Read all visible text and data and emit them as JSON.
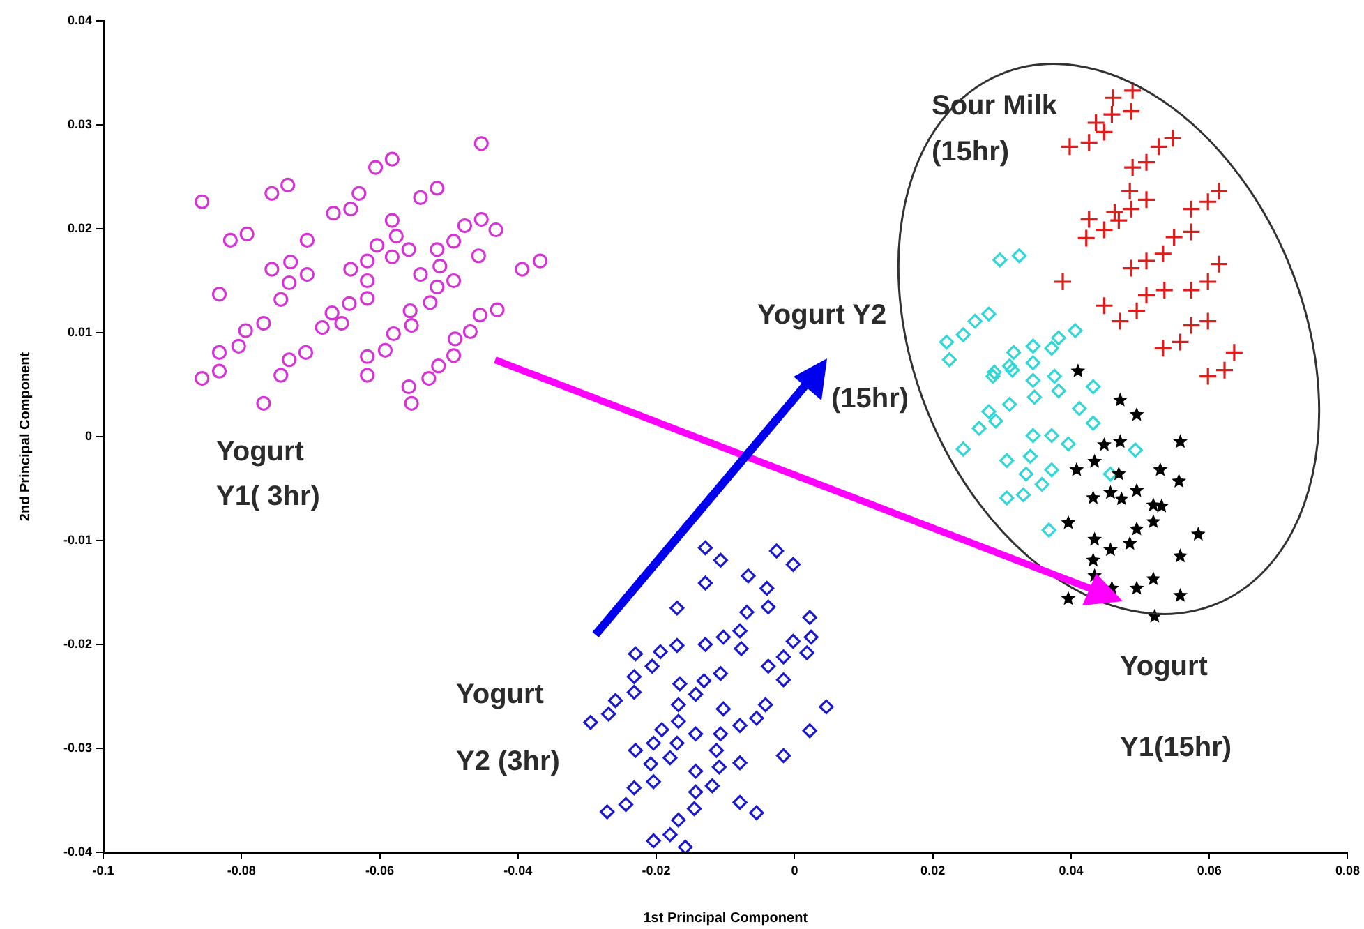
{
  "chart_data": {
    "type": "scatter",
    "xlabel": "1st Principal Component",
    "ylabel": "2nd Principal Component",
    "xlim": [
      -0.1,
      0.08
    ],
    "xticks": [
      -0.1,
      -0.08,
      -0.06,
      -0.04,
      -0.02,
      0,
      0.02,
      0.04,
      0.06,
      0.08
    ],
    "ylim": [
      -0.04,
      0.04
    ],
    "yticks": [
      -0.04,
      -0.03,
      -0.02,
      -0.01,
      0,
      0.01,
      0.02,
      0.03,
      0.04
    ],
    "grid": false,
    "legend": false,
    "series": [
      {
        "color": "#d633d6",
        "marker": "circle",
        "x": [
          -0.0453,
          -0.0582,
          -0.0606,
          -0.0733,
          -0.0756,
          -0.0857,
          -0.063,
          -0.0642,
          -0.0667,
          -0.0517,
          -0.0541,
          -0.0453,
          -0.0477,
          -0.0432,
          -0.0582,
          -0.0576,
          -0.0604,
          -0.0582,
          -0.0558,
          -0.0705,
          -0.0792,
          -0.0816,
          -0.0517,
          -0.0493,
          -0.0457,
          -0.0513,
          -0.0394,
          -0.0368,
          -0.0729,
          -0.0756,
          -0.0705,
          -0.0731,
          -0.0642,
          -0.0618,
          -0.0618,
          -0.0618,
          -0.0541,
          -0.0517,
          -0.0493,
          -0.0527,
          -0.0832,
          -0.0743,
          -0.0669,
          -0.0644,
          -0.0683,
          -0.0655,
          -0.0556,
          -0.0554,
          -0.058,
          -0.0592,
          -0.0455,
          -0.043,
          -0.0469,
          -0.0491,
          -0.0768,
          -0.0794,
          -0.0804,
          -0.0832,
          -0.0832,
          -0.0857,
          -0.0707,
          -0.0731,
          -0.0743,
          -0.0618,
          -0.0618,
          -0.0493,
          -0.0515,
          -0.0529,
          -0.0558,
          -0.0554,
          -0.0768
        ],
        "values": [
          0.0282,
          0.0267,
          0.0259,
          0.0242,
          0.0234,
          0.0226,
          0.0234,
          0.0219,
          0.0215,
          0.0239,
          0.023,
          0.0209,
          0.0203,
          0.0199,
          0.0208,
          0.0193,
          0.0184,
          0.0173,
          0.018,
          0.0189,
          0.0195,
          0.0189,
          0.018,
          0.0188,
          0.0174,
          0.0164,
          0.0161,
          0.0169,
          0.0168,
          0.0161,
          0.0156,
          0.0148,
          0.0161,
          0.0169,
          0.015,
          0.0133,
          0.0156,
          0.0144,
          0.015,
          0.0129,
          0.0137,
          0.0132,
          0.0119,
          0.0128,
          0.0105,
          0.0109,
          0.0121,
          0.0107,
          0.0099,
          0.0083,
          0.0117,
          0.0122,
          0.0101,
          0.0094,
          0.0109,
          0.0102,
          0.0087,
          0.0081,
          0.0063,
          0.0056,
          0.0081,
          0.0074,
          0.0059,
          0.0077,
          0.0059,
          0.0078,
          0.0068,
          0.0056,
          0.0048,
          0.0032,
          0.0032
        ]
      },
      {
        "color": "#1a1acc",
        "marker": "diamond",
        "x": [
          -0.0129,
          -0.0107,
          -0.0026,
          -0.0002,
          -0.0129,
          -0.0067,
          -0.004,
          -0.0038,
          -0.017,
          -0.0069,
          -0.0079,
          -0.0103,
          -0.0129,
          -0.0077,
          0.0022,
          0.0024,
          -0.0002,
          0.0018,
          -0.017,
          -0.0194,
          -0.023,
          -0.0206,
          -0.0232,
          -0.0232,
          -0.0259,
          -0.0269,
          -0.0295,
          -0.0038,
          -0.0016,
          -0.0016,
          -0.0107,
          -0.0131,
          -0.0166,
          -0.0168,
          -0.0143,
          -0.0042,
          -0.0055,
          0.0046,
          0.0022,
          -0.0168,
          -0.0192,
          -0.017,
          -0.0143,
          -0.0107,
          -0.0103,
          -0.0079,
          -0.0204,
          -0.023,
          -0.018,
          -0.0208,
          -0.0204,
          -0.0113,
          -0.0109,
          -0.0079,
          -0.0016,
          -0.0143,
          -0.0119,
          -0.0143,
          -0.0145,
          -0.0232,
          -0.0244,
          -0.0271,
          -0.0168,
          -0.018,
          -0.0204,
          -0.0158,
          -0.0079,
          -0.0055
        ],
        "values": [
          -0.0107,
          -0.0119,
          -0.011,
          -0.0123,
          -0.0141,
          -0.0134,
          -0.0146,
          -0.0164,
          -0.0165,
          -0.0169,
          -0.0187,
          -0.0193,
          -0.02,
          -0.0204,
          -0.0174,
          -0.0193,
          -0.0197,
          -0.0208,
          -0.0201,
          -0.0207,
          -0.0209,
          -0.0221,
          -0.0231,
          -0.0246,
          -0.0254,
          -0.0267,
          -0.0275,
          -0.0221,
          -0.0212,
          -0.0234,
          -0.0228,
          -0.0235,
          -0.0238,
          -0.0258,
          -0.0248,
          -0.0258,
          -0.0271,
          -0.026,
          -0.0283,
          -0.0274,
          -0.0282,
          -0.0295,
          -0.0286,
          -0.0286,
          -0.0262,
          -0.0278,
          -0.0295,
          -0.0302,
          -0.0309,
          -0.0315,
          -0.0332,
          -0.0302,
          -0.0318,
          -0.0314,
          -0.0307,
          -0.0322,
          -0.0336,
          -0.0342,
          -0.0358,
          -0.0338,
          -0.0354,
          -0.0361,
          -0.0369,
          -0.0383,
          -0.0389,
          -0.0395,
          -0.0352,
          -0.0362
        ]
      },
      {
        "color": "#dd1c1c",
        "marker": "cross",
        "x": [
          0.0489,
          0.0461,
          0.0487,
          0.0459,
          0.0436,
          0.0448,
          0.0426,
          0.0398,
          0.0547,
          0.0527,
          0.0509,
          0.0489,
          0.0485,
          0.0509,
          0.0487,
          0.0463,
          0.0469,
          0.0448,
          0.0426,
          0.0422,
          0.0614,
          0.0598,
          0.0574,
          0.0574,
          0.0549,
          0.0533,
          0.0614,
          0.0598,
          0.0574,
          0.0509,
          0.0487,
          0.0535,
          0.0509,
          0.0495,
          0.0471,
          0.0448,
          0.0388,
          0.0598,
          0.0574,
          0.0558,
          0.0533,
          0.0636,
          0.0622,
          0.0598
        ],
        "values": [
          0.0333,
          0.0326,
          0.0313,
          0.031,
          0.0302,
          0.0293,
          0.0283,
          0.0279,
          0.0287,
          0.0279,
          0.0264,
          0.0259,
          0.0236,
          0.0228,
          0.0219,
          0.0216,
          0.0208,
          0.0199,
          0.0209,
          0.0191,
          0.0236,
          0.0226,
          0.0219,
          0.0197,
          0.0192,
          0.0176,
          0.0166,
          0.0149,
          0.0141,
          0.0169,
          0.0162,
          0.0141,
          0.0136,
          0.0121,
          0.0111,
          0.0126,
          0.0149,
          0.0111,
          0.0107,
          0.0091,
          0.0085,
          0.0081,
          0.0064,
          0.0058
        ]
      },
      {
        "color": "#33d6d6",
        "marker": "diamond",
        "x": [
          0.0297,
          0.0325,
          0.0281,
          0.0261,
          0.0244,
          0.022,
          0.0224,
          0.0317,
          0.0345,
          0.0372,
          0.0382,
          0.0406,
          0.0289,
          0.0311,
          0.0345,
          0.0287,
          0.0315,
          0.0345,
          0.0376,
          0.0432,
          0.0281,
          0.0311,
          0.0347,
          0.0382,
          0.0267,
          0.0291,
          0.0412,
          0.0432,
          0.0244,
          0.0345,
          0.0372,
          0.0396,
          0.0307,
          0.0341,
          0.0372,
          0.0335,
          0.0307,
          0.0331,
          0.0358,
          0.0457,
          0.0493,
          0.0368
        ],
        "values": [
          0.017,
          0.0174,
          0.0118,
          0.0111,
          0.0098,
          0.0091,
          0.0074,
          0.0081,
          0.0087,
          0.0085,
          0.0095,
          0.0102,
          0.0062,
          0.0068,
          0.0071,
          0.0058,
          0.0064,
          0.0054,
          0.0058,
          0.0048,
          0.0024,
          0.0031,
          0.0038,
          0.0044,
          0.0008,
          0.0015,
          0.0027,
          0.0013,
          -0.0012,
          0.0001,
          0.0001,
          -0.0007,
          -0.0023,
          -0.0019,
          -0.0032,
          -0.0036,
          -0.0059,
          -0.0056,
          -0.0046,
          -0.0036,
          -0.0013,
          -0.009
        ]
      },
      {
        "color": "#000000",
        "marker": "star",
        "x": [
          0.041,
          0.0471,
          0.0495,
          0.0448,
          0.0471,
          0.0558,
          0.0434,
          0.0408,
          0.0469,
          0.0529,
          0.0556,
          0.0432,
          0.0457,
          0.0473,
          0.0495,
          0.0519,
          0.0531,
          0.0519,
          0.0495,
          0.0584,
          0.0396,
          0.0434,
          0.0457,
          0.0485,
          0.0432,
          0.0558,
          0.0434,
          0.0519,
          0.0495,
          0.0459,
          0.0558,
          0.0396,
          0.0521
        ],
        "values": [
          0.0063,
          0.0035,
          0.0021,
          -0.0008,
          -0.0005,
          -0.0005,
          -0.0024,
          -0.0032,
          -0.0036,
          -0.0032,
          -0.0043,
          -0.0059,
          -0.0054,
          -0.006,
          -0.0052,
          -0.0066,
          -0.0067,
          -0.0082,
          -0.0089,
          -0.0094,
          -0.0083,
          -0.0099,
          -0.0109,
          -0.0103,
          -0.0119,
          -0.0115,
          -0.0134,
          -0.0137,
          -0.0146,
          -0.0146,
          -0.0153,
          -0.0156,
          -0.0173
        ]
      }
    ],
    "annotations": [
      "Sour Milk\n(15hr)",
      "Yogurt Y2\n(15hr)",
      "Yogurt\nY1( 3hr)",
      "Yogurt\nY2 (3hr)",
      "Yogurt\nY1(15hr)"
    ]
  }
}
